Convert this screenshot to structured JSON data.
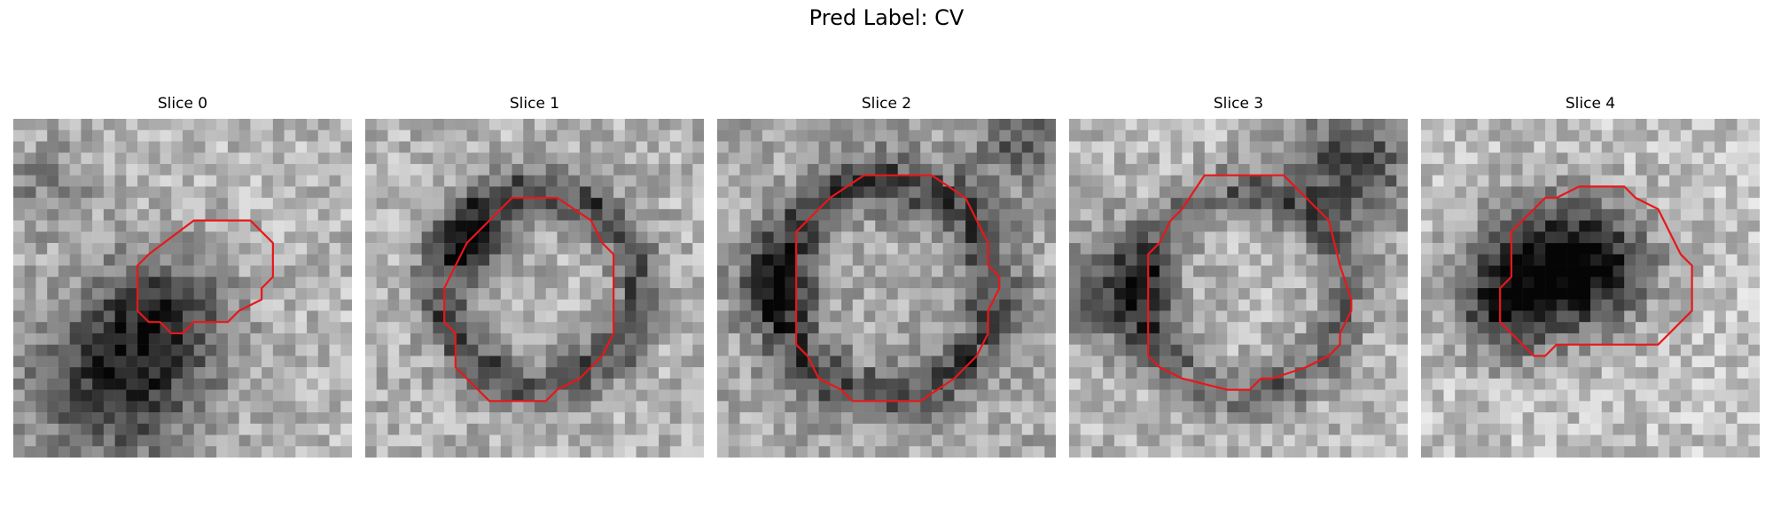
{
  "figure": {
    "title": "Pred Label: CV"
  },
  "panels": [
    {
      "title": "Slice 0",
      "seed": 11,
      "variant": 0
    },
    {
      "title": "Slice 1",
      "seed": 23,
      "variant": 1
    },
    {
      "title": "Slice 2",
      "seed": 37,
      "variant": 2
    },
    {
      "title": "Slice 3",
      "seed": 51,
      "variant": 3
    },
    {
      "title": "Slice 4",
      "seed": 67,
      "variant": 4
    }
  ],
  "colors": {
    "contour": "#e8171a",
    "background": "#ffffff"
  }
}
